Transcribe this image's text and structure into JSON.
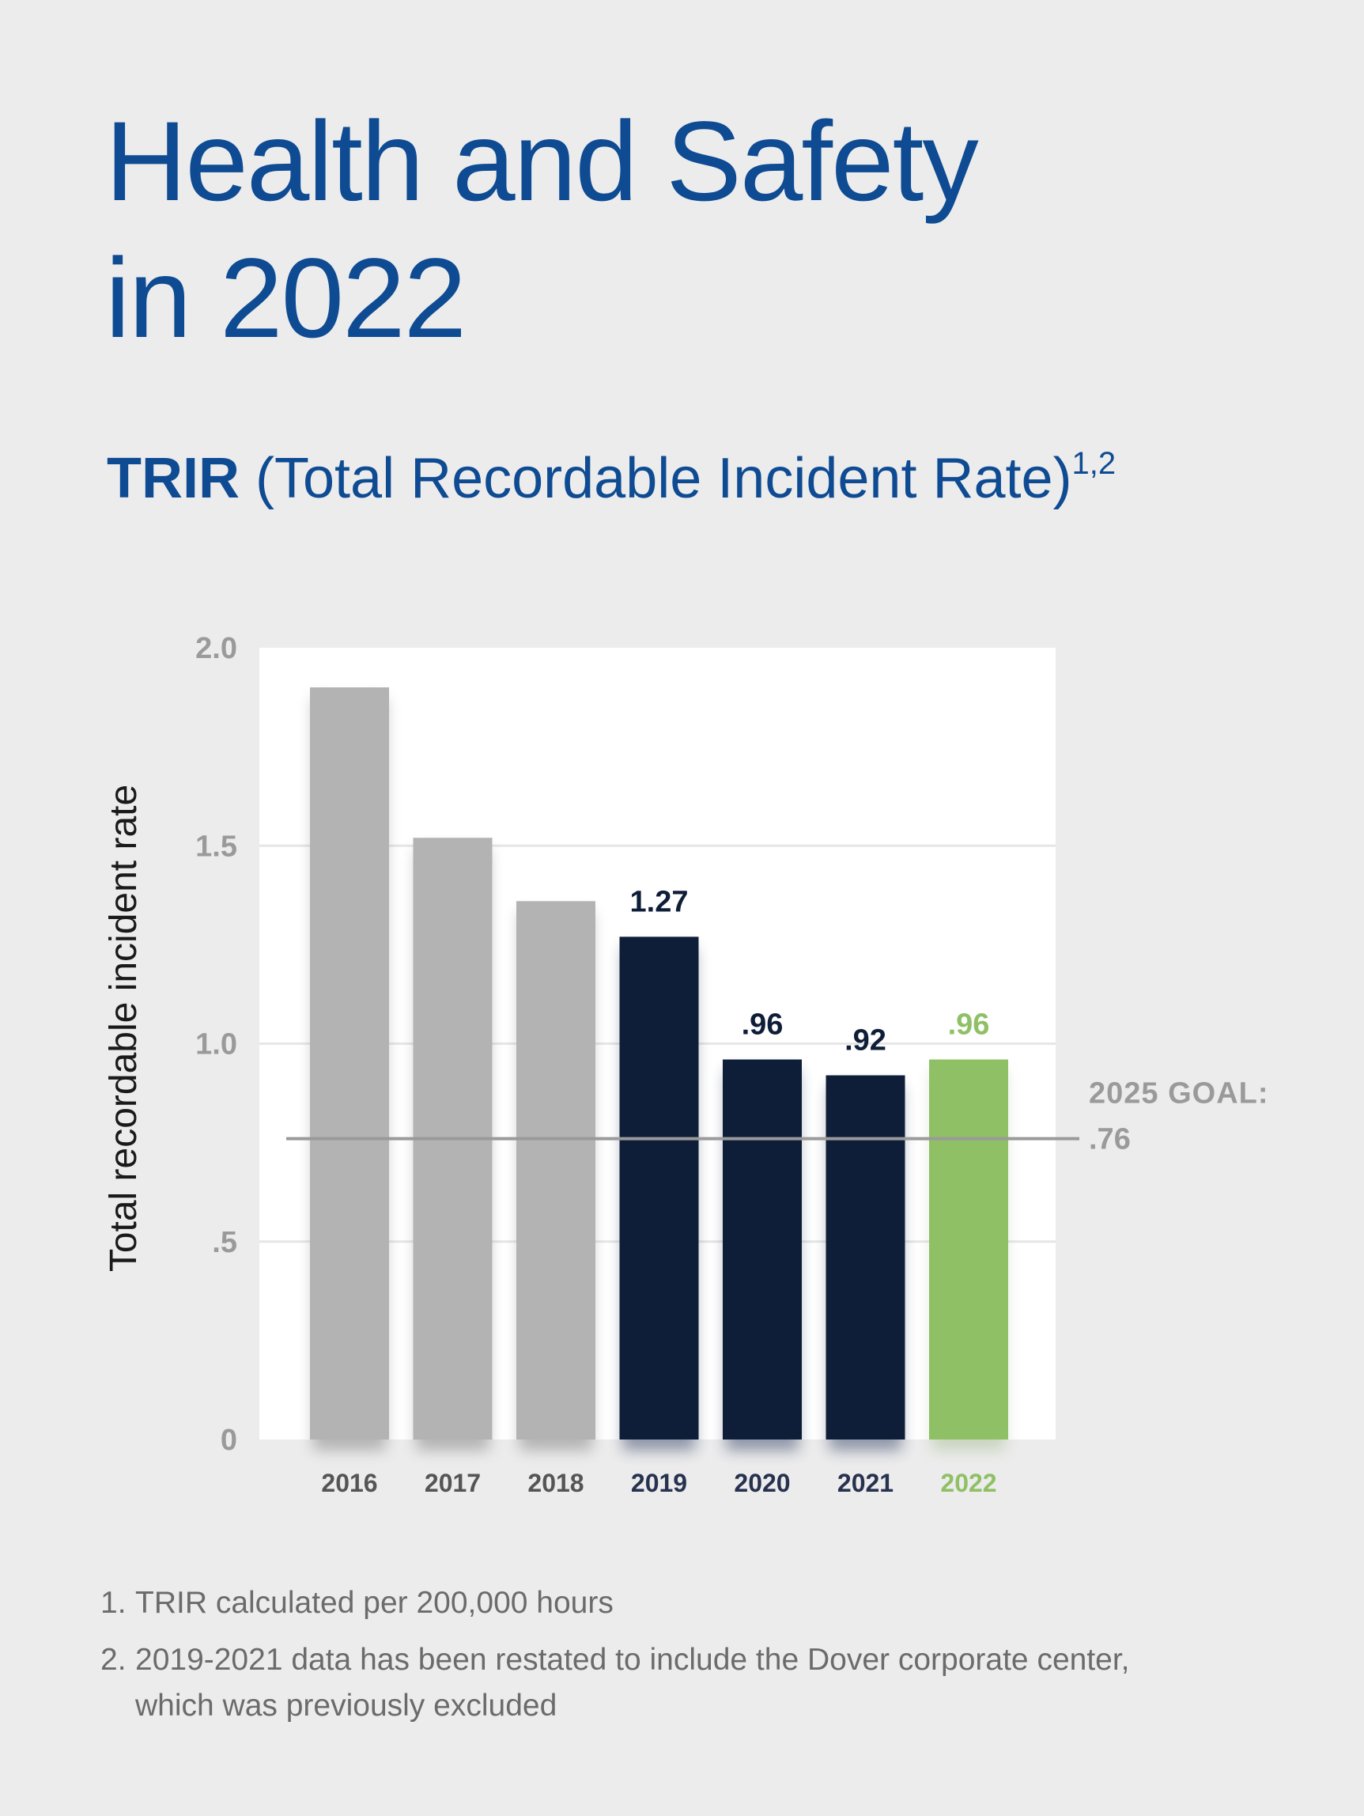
{
  "title": {
    "line1": "Health and Safety",
    "line2": "in 2022"
  },
  "subtitle": {
    "strong": "TRIR",
    "rest": "(Total Recordable Incident Rate)",
    "footnote_marks": "1,2"
  },
  "colors": {
    "title": "#0e4b93",
    "past_bar": "#b3b3b3",
    "restated_bar": "#0f1e38",
    "current_bar": "#8fc066",
    "goal_line": "#9a9a9a",
    "axis_text": "#9a9a9a",
    "plot_background": "#ffffff"
  },
  "chart_data": {
    "type": "bar",
    "title": "",
    "ylabel": "Total recordable incident rate",
    "xlabel": "",
    "ylim": [
      0,
      2.0
    ],
    "yticks": [
      {
        "value": 0,
        "label": "0"
      },
      {
        "value": 0.5,
        "label": ".5"
      },
      {
        "value": 1.0,
        "label": "1.0"
      },
      {
        "value": 1.5,
        "label": "1.5"
      },
      {
        "value": 2.0,
        "label": "2.0"
      }
    ],
    "grid": true,
    "categories": [
      "2016",
      "2017",
      "2018",
      "2019",
      "2020",
      "2021",
      "2022"
    ],
    "values": [
      1.9,
      1.52,
      1.36,
      1.27,
      0.96,
      0.92,
      0.96
    ],
    "data_labels": [
      "",
      "",
      "",
      "1.27",
      ".96",
      ".92",
      ".96"
    ],
    "bar_groups": [
      "past",
      "past",
      "past",
      "restated",
      "restated",
      "restated",
      "current"
    ],
    "goal": {
      "value": 0.76,
      "label_line1": "2025 GOAL:",
      "label_line2": ".76"
    }
  },
  "footnotes": [
    {
      "number": "1.",
      "text": "TRIR calculated per 200,000 hours"
    },
    {
      "number": "2.",
      "text": "2019-2021 data has been restated to include the Dover corporate center, which was previously excluded"
    }
  ]
}
